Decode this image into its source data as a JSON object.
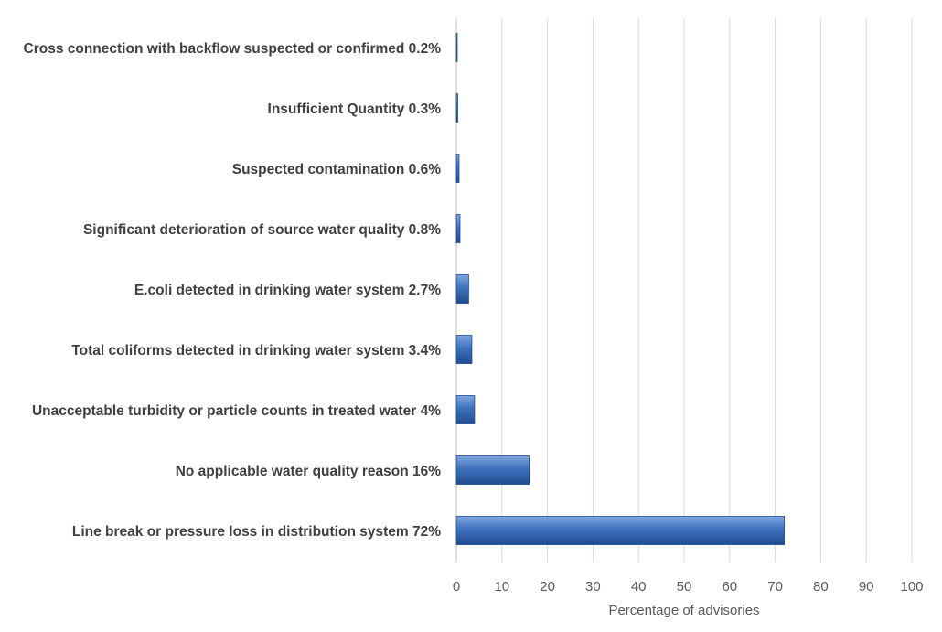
{
  "chart_data": {
    "type": "bar",
    "orientation": "horizontal",
    "categories": [
      "Cross connection with backflow suspected or confirmed 0.2%",
      "Insufficient Quantity 0.3%",
      "Suspected contamination 0.6%",
      "Significant deterioration of source water quality 0.8%",
      "E.coli detected in drinking water system 2.7%",
      "Total coliforms detected in drinking water system 3.4%",
      "Unacceptable turbidity or particle counts in treated water 4%",
      "No applicable water quality reason 16%",
      "Line break or pressure loss in distribution system 72%"
    ],
    "values": [
      0.2,
      0.3,
      0.6,
      0.8,
      2.7,
      3.4,
      4,
      16,
      72
    ],
    "xlabel": "Percentage of advisories",
    "ylabel": "",
    "xlim": [
      0,
      100
    ],
    "xticks": [
      "0",
      "10",
      "20",
      "30",
      "40",
      "50",
      "60",
      "70",
      "80",
      "90",
      "100"
    ],
    "grid": "vertical",
    "legend": "none",
    "bar_color": "#3f72be"
  }
}
